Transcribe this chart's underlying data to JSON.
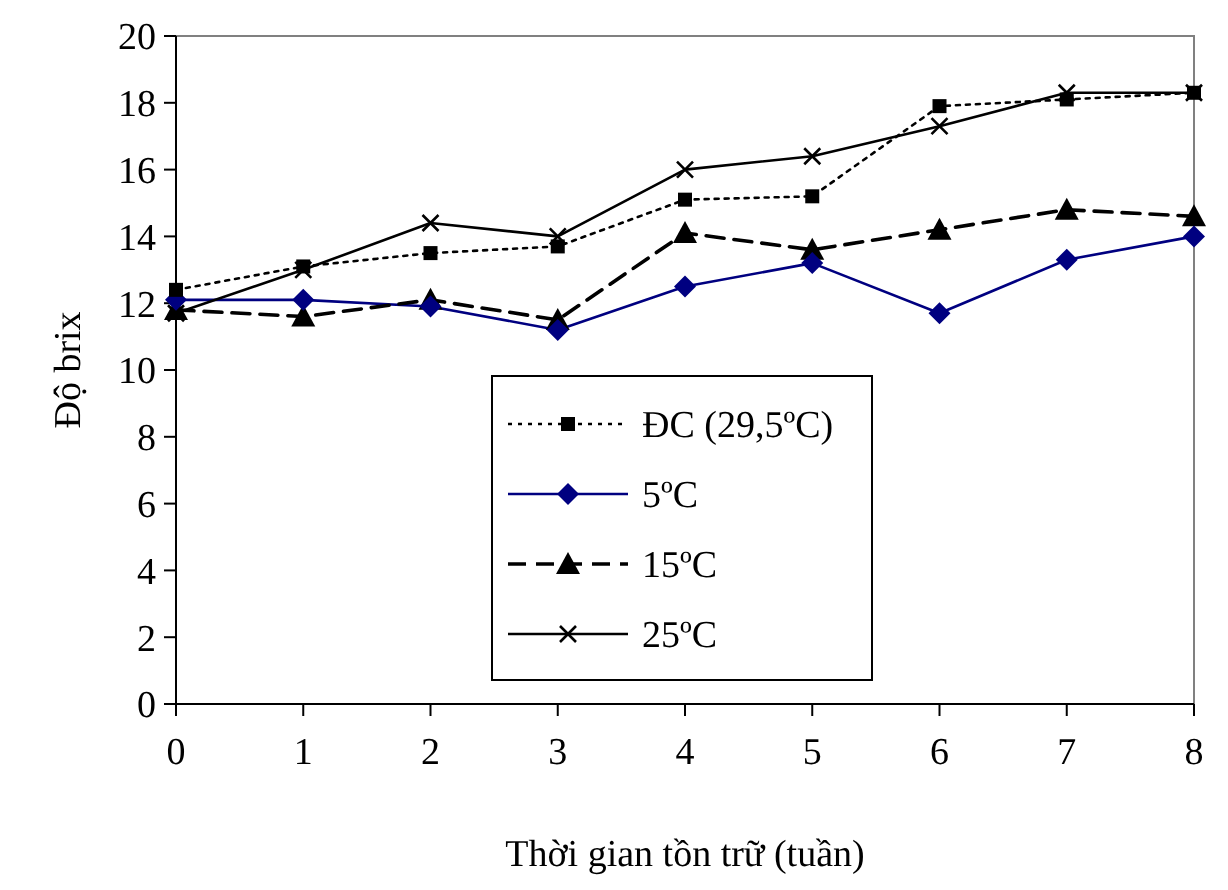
{
  "chart_data": {
    "type": "line",
    "xlabel": "Thời gian tồn trữ (tuần)",
    "ylabel": "Độ brix",
    "x": [
      0,
      1,
      2,
      3,
      4,
      5,
      6,
      7,
      8
    ],
    "xlim": [
      0,
      8
    ],
    "xticks": [
      0,
      1,
      2,
      3,
      4,
      5,
      6,
      7,
      8
    ],
    "ylim": [
      0,
      20
    ],
    "yticks": [
      0,
      2,
      4,
      6,
      8,
      10,
      12,
      14,
      16,
      18,
      20
    ],
    "grid": false,
    "legend": "bottom",
    "series": [
      {
        "name": "ĐC (29,5ºC)",
        "color": "#000000",
        "marker": "square",
        "line_style": "dotted",
        "values": [
          12.4,
          13.1,
          13.5,
          13.7,
          15.1,
          15.2,
          17.9,
          18.1,
          18.3
        ]
      },
      {
        "name": "5ºC",
        "color": "#000080",
        "marker": "diamond",
        "line_style": "solid",
        "values": [
          12.1,
          12.1,
          11.9,
          11.2,
          12.5,
          13.2,
          11.7,
          13.3,
          14.0
        ]
      },
      {
        "name": "15ºC",
        "color": "#000000",
        "marker": "triangle",
        "line_style": "dashed",
        "values": [
          11.8,
          11.6,
          12.1,
          11.5,
          14.1,
          13.6,
          14.2,
          14.8,
          14.6
        ]
      },
      {
        "name": "25ºC",
        "color": "#000000",
        "marker": "cross",
        "line_style": "solid",
        "values": [
          11.7,
          13.0,
          14.4,
          14.0,
          16.0,
          16.4,
          17.3,
          18.3,
          18.3
        ]
      }
    ]
  }
}
